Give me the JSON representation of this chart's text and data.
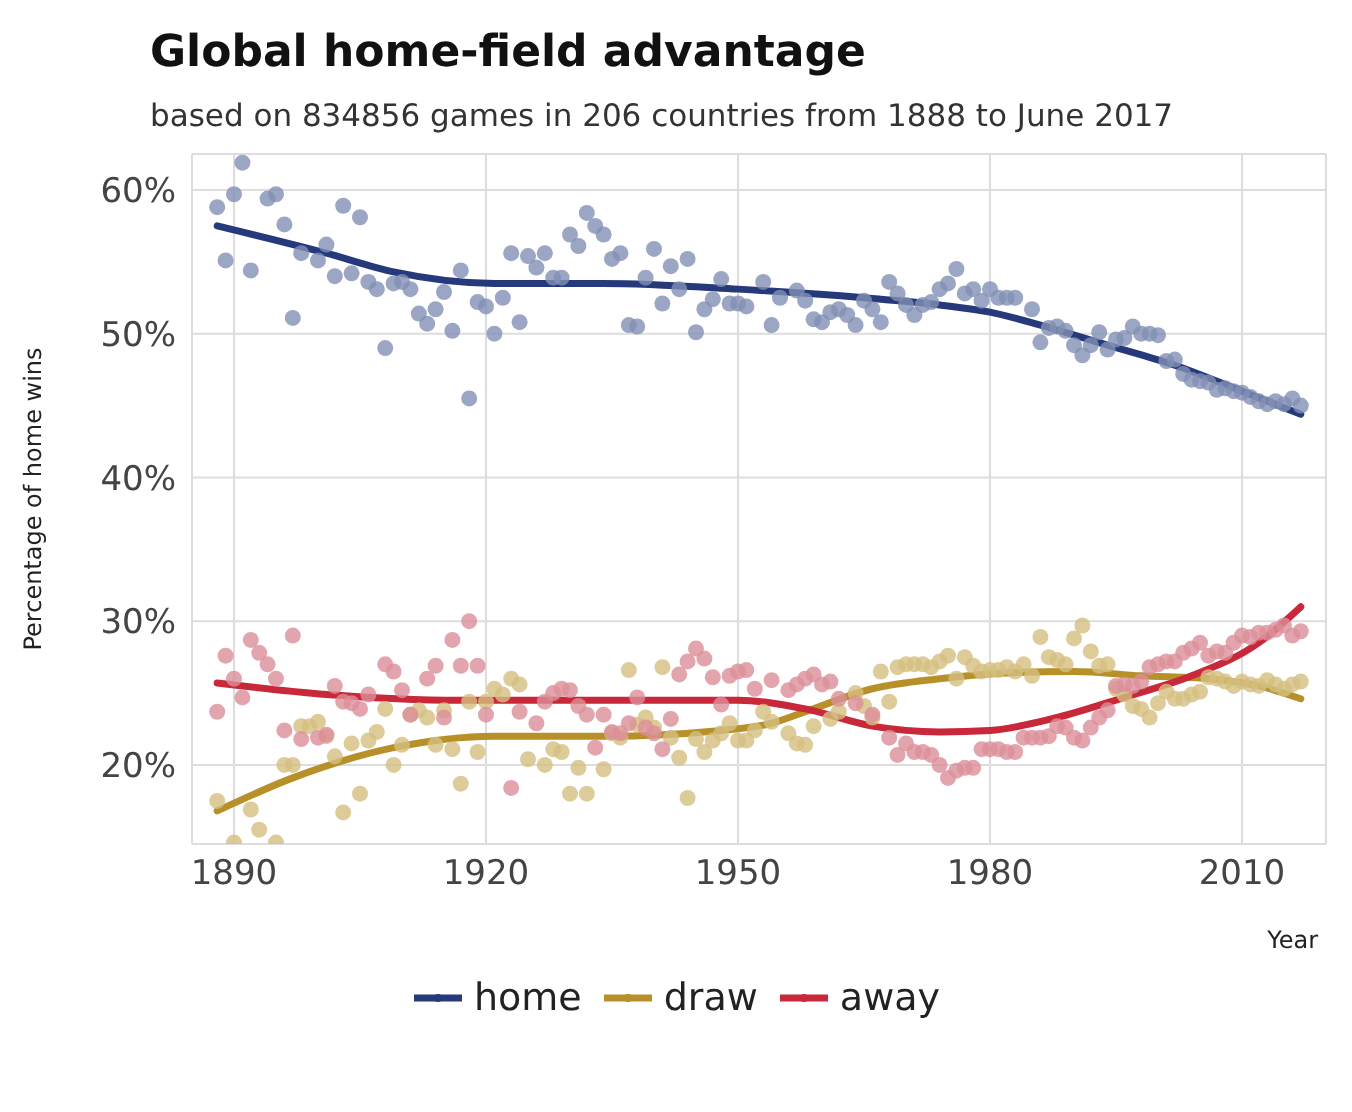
{
  "chart_data": {
    "type": "scatter",
    "title": "Global home-field advantage",
    "subtitle": "based on 834856 games in 206 countries from 1888 to June 2017",
    "xlabel": "Year",
    "ylabel": "Percentage of home wins",
    "xlim": [
      1885,
      2020
    ],
    "xticks": [
      1890,
      1920,
      1950,
      1980,
      2010
    ],
    "ylim": [
      14.5,
      62.5
    ],
    "yticks": [
      {
        "value": 20,
        "label": "20%"
      },
      {
        "value": 30,
        "label": "30%"
      },
      {
        "value": 40,
        "label": "40%"
      },
      {
        "value": 50,
        "label": "50%"
      },
      {
        "value": 60,
        "label": "60%"
      }
    ],
    "grid": true,
    "legend": "bottom",
    "series": [
      {
        "color": "#8290b5",
        "x": [
          1888,
          1889,
          1890,
          1891,
          1892,
          1894,
          1895,
          1896,
          1897,
          1898,
          1900,
          1901,
          1902,
          1903,
          1904,
          1905,
          1906,
          1907,
          1908,
          1909,
          1910,
          1911,
          1912,
          1913,
          1914,
          1915,
          1916,
          1917,
          1918,
          1919,
          1920,
          1921,
          1922,
          1923,
          1924,
          1925,
          1926,
          1927,
          1928,
          1929,
          1930,
          1931,
          1932,
          1933,
          1934,
          1935,
          1936,
          1937,
          1938,
          1939,
          1940,
          1941,
          1942,
          1943,
          1944,
          1945,
          1946,
          1947,
          1948,
          1949,
          1950,
          1951,
          1953,
          1954,
          1955,
          1957,
          1958,
          1959,
          1960,
          1961,
          1962,
          1963,
          1964,
          1965,
          1966,
          1967,
          1968,
          1969,
          1970,
          1971,
          1972,
          1973,
          1974,
          1975,
          1976,
          1977,
          1978,
          1979,
          1980,
          1981,
          1982,
          1983,
          1985,
          1986,
          1987,
          1988,
          1989,
          1990,
          1991,
          1992,
          1993,
          1994,
          1995,
          1996,
          1997,
          1998,
          1999,
          2000,
          2001,
          2002,
          2003,
          2004,
          2005,
          2006,
          2007,
          2008,
          2009,
          2010,
          2011,
          2012,
          2013,
          2014,
          2015,
          2016,
          2017
        ],
        "values": [
          58.8,
          55.1,
          59.7,
          61.9,
          54.4,
          59.4,
          59.7,
          57.6,
          51.1,
          55.6,
          55.1,
          56.2,
          54.0,
          58.9,
          54.2,
          58.1,
          53.6,
          53.1,
          49.0,
          53.5,
          53.6,
          53.1,
          51.4,
          50.7,
          51.7,
          52.9,
          50.2,
          54.4,
          45.5,
          52.2,
          51.9,
          50.0,
          52.5,
          55.6,
          50.8,
          55.4,
          54.6,
          55.6,
          53.9,
          53.9,
          56.9,
          56.1,
          58.4,
          57.5,
          56.9,
          55.2,
          55.6,
          50.6,
          50.5,
          53.9,
          55.9,
          52.1,
          54.7,
          53.1,
          55.2,
          50.1,
          51.7,
          52.4,
          53.8,
          52.1,
          52.1,
          51.9,
          53.6,
          50.6,
          52.5,
          53.0,
          52.3,
          51.0,
          50.8,
          51.5,
          51.7,
          51.3,
          50.6,
          52.3,
          51.7,
          50.8,
          53.6,
          52.8,
          52.0,
          51.3,
          52.0,
          52.2,
          53.1,
          53.5,
          54.5,
          52.8,
          53.1,
          52.3,
          53.1,
          52.5,
          52.5,
          52.5,
          51.7,
          49.4,
          50.4,
          50.5,
          50.2,
          49.2,
          48.5,
          49.2,
          50.1,
          48.9,
          49.6,
          49.7,
          50.5,
          50.0,
          50.0,
          49.9,
          48.1,
          48.2,
          47.2,
          46.8,
          46.7,
          46.6,
          46.1,
          46.2,
          46.0,
          45.9,
          45.6,
          45.3,
          45.1,
          45.3,
          45.1,
          45.5,
          45.0
        ]
      },
      {
        "color": "#d5bf80",
        "x": [
          1888,
          1890,
          1892,
          1893,
          1895,
          1896,
          1897,
          1898,
          1899,
          1900,
          1901,
          1902,
          1903,
          1904,
          1905,
          1906,
          1907,
          1908,
          1909,
          1910,
          1911,
          1912,
          1913,
          1914,
          1915,
          1916,
          1917,
          1918,
          1919,
          1920,
          1921,
          1922,
          1923,
          1924,
          1925,
          1927,
          1928,
          1929,
          1930,
          1931,
          1932,
          1934,
          1935,
          1936,
          1937,
          1938,
          1939,
          1940,
          1941,
          1942,
          1943,
          1944,
          1945,
          1946,
          1947,
          1948,
          1949,
          1950,
          1951,
          1952,
          1953,
          1954,
          1956,
          1957,
          1958,
          1959,
          1961,
          1962,
          1964,
          1965,
          1966,
          1967,
          1968,
          1969,
          1970,
          1971,
          1972,
          1973,
          1974,
          1975,
          1976,
          1977,
          1978,
          1979,
          1980,
          1981,
          1982,
          1983,
          1984,
          1985,
          1986,
          1987,
          1988,
          1989,
          1990,
          1991,
          1992,
          1993,
          1994,
          1995,
          1996,
          1997,
          1998,
          1999,
          2000,
          2001,
          2002,
          2003,
          2004,
          2005,
          2006,
          2007,
          2008,
          2009,
          2010,
          2011,
          2012,
          2013,
          2014,
          2015,
          2016,
          2017
        ],
        "values": [
          17.5,
          14.6,
          16.9,
          15.5,
          14.6,
          20.0,
          20.0,
          22.7,
          22.7,
          23.0,
          22.0,
          20.6,
          16.7,
          21.5,
          18.0,
          21.7,
          22.3,
          23.9,
          20.0,
          21.4,
          23.5,
          23.8,
          23.3,
          21.4,
          23.8,
          21.1,
          18.7,
          24.4,
          20.9,
          24.4,
          25.3,
          24.9,
          26.0,
          25.6,
          20.4,
          20.0,
          21.1,
          20.9,
          18.0,
          19.8,
          18.0,
          19.7,
          22.2,
          21.9,
          26.6,
          22.8,
          23.3,
          22.6,
          26.8,
          21.9,
          20.5,
          17.7,
          21.8,
          20.9,
          21.7,
          22.2,
          22.9,
          21.7,
          21.7,
          22.4,
          23.7,
          23.0,
          22.2,
          21.5,
          21.4,
          22.7,
          23.2,
          23.7,
          25.0,
          24.1,
          23.3,
          26.5,
          24.4,
          26.8,
          27.0,
          27.0,
          27.0,
          26.8,
          27.2,
          27.6,
          26.0,
          27.5,
          26.9,
          26.5,
          26.6,
          26.6,
          26.8,
          26.5,
          27.0,
          26.2,
          28.9,
          27.5,
          27.3,
          27.0,
          28.8,
          29.7,
          27.9,
          26.9,
          27.0,
          25.3,
          24.9,
          24.1,
          23.9,
          23.3,
          24.3,
          25.1,
          24.6,
          24.6,
          24.9,
          25.1,
          26.1,
          26.0,
          25.8,
          25.5,
          25.8,
          25.6,
          25.5,
          25.9,
          25.6,
          25.3,
          25.6,
          25.8
        ]
      },
      {
        "color": "#dc8f98",
        "x": [
          1888,
          1889,
          1890,
          1891,
          1892,
          1893,
          1894,
          1895,
          1896,
          1897,
          1898,
          1900,
          1901,
          1902,
          1903,
          1904,
          1905,
          1906,
          1908,
          1909,
          1910,
          1911,
          1913,
          1914,
          1915,
          1916,
          1917,
          1918,
          1919,
          1920,
          1923,
          1924,
          1926,
          1927,
          1928,
          1929,
          1930,
          1931,
          1932,
          1933,
          1934,
          1935,
          1936,
          1937,
          1938,
          1939,
          1940,
          1941,
          1942,
          1943,
          1944,
          1945,
          1946,
          1947,
          1948,
          1949,
          1950,
          1951,
          1952,
          1954,
          1956,
          1957,
          1958,
          1959,
          1960,
          1961,
          1962,
          1964,
          1966,
          1968,
          1969,
          1970,
          1971,
          1972,
          1973,
          1974,
          1975,
          1976,
          1977,
          1978,
          1979,
          1980,
          1981,
          1982,
          1983,
          1984,
          1985,
          1986,
          1987,
          1988,
          1989,
          1990,
          1991,
          1992,
          1993,
          1994,
          1995,
          1996,
          1997,
          1998,
          1999,
          2000,
          2001,
          2002,
          2003,
          2004,
          2005,
          2006,
          2007,
          2008,
          2009,
          2010,
          2011,
          2012,
          2013,
          2014,
          2015,
          2016,
          2017
        ],
        "values": [
          23.7,
          27.6,
          26.0,
          24.7,
          28.7,
          27.8,
          27.0,
          26.0,
          22.4,
          29.0,
          21.8,
          21.9,
          22.1,
          25.5,
          24.4,
          24.3,
          23.9,
          24.9,
          27.0,
          26.5,
          25.2,
          23.5,
          26.0,
          26.9,
          23.3,
          28.7,
          26.9,
          30.0,
          26.9,
          23.5,
          18.4,
          23.7,
          22.9,
          24.4,
          25.0,
          25.3,
          25.2,
          24.1,
          23.5,
          21.2,
          23.5,
          22.3,
          22.2,
          22.9,
          24.7,
          22.6,
          22.2,
          21.1,
          23.2,
          26.3,
          27.2,
          28.1,
          27.4,
          26.1,
          24.2,
          26.2,
          26.5,
          26.6,
          25.3,
          25.9,
          25.2,
          25.6,
          26.0,
          26.3,
          25.6,
          25.8,
          24.6,
          24.3,
          23.5,
          21.9,
          20.7,
          21.5,
          20.9,
          20.9,
          20.7,
          20.0,
          19.1,
          19.6,
          19.8,
          19.8,
          21.1,
          21.1,
          21.1,
          20.9,
          20.9,
          21.9,
          21.9,
          21.9,
          22.0,
          22.7,
          22.6,
          21.9,
          21.7,
          22.6,
          23.3,
          23.8,
          25.5,
          25.6,
          25.5,
          25.8,
          26.8,
          27.0,
          27.2,
          27.2,
          27.8,
          28.1,
          28.5,
          27.6,
          27.9,
          27.8,
          28.5,
          29.0,
          28.9,
          29.2,
          29.2,
          29.4,
          29.7,
          29.0,
          29.3
        ]
      },
      {
        "type": "line",
        "name": "home",
        "color": "#26397a",
        "x": [
          1888,
          1901,
          1909,
          1921,
          1934,
          1950,
          1965,
          1974,
          1980,
          1986,
          1994,
          2002,
          2010,
          2017
        ],
        "values": [
          57.5,
          55.6,
          54.3,
          53.5,
          53.5,
          53.1,
          52.5,
          52.0,
          51.5,
          50.6,
          49.2,
          47.8,
          46.0,
          44.4
        ]
      },
      {
        "type": "line",
        "name": "draw",
        "color": "#b8902a",
        "x": [
          1888,
          1897,
          1909,
          1921,
          1934,
          1948,
          1954,
          1958,
          1966,
          1974,
          1982,
          1990,
          1998,
          2006,
          2012,
          2017
        ],
        "values": [
          16.8,
          19.1,
          21.2,
          22.0,
          22.0,
          22.4,
          22.9,
          23.7,
          25.3,
          26.0,
          26.4,
          26.5,
          26.2,
          26.0,
          25.5,
          24.6
        ]
      },
      {
        "type": "line",
        "name": "away",
        "color": "#c8283a",
        "x": [
          1888,
          1901,
          1917,
          1933,
          1950,
          1958,
          1966,
          1974,
          1980,
          1988,
          1996,
          2004,
          2012,
          2017
        ],
        "values": [
          25.7,
          24.9,
          24.5,
          24.5,
          24.5,
          23.9,
          22.7,
          22.3,
          22.4,
          23.3,
          24.7,
          26.2,
          28.5,
          31.0
        ]
      }
    ]
  }
}
